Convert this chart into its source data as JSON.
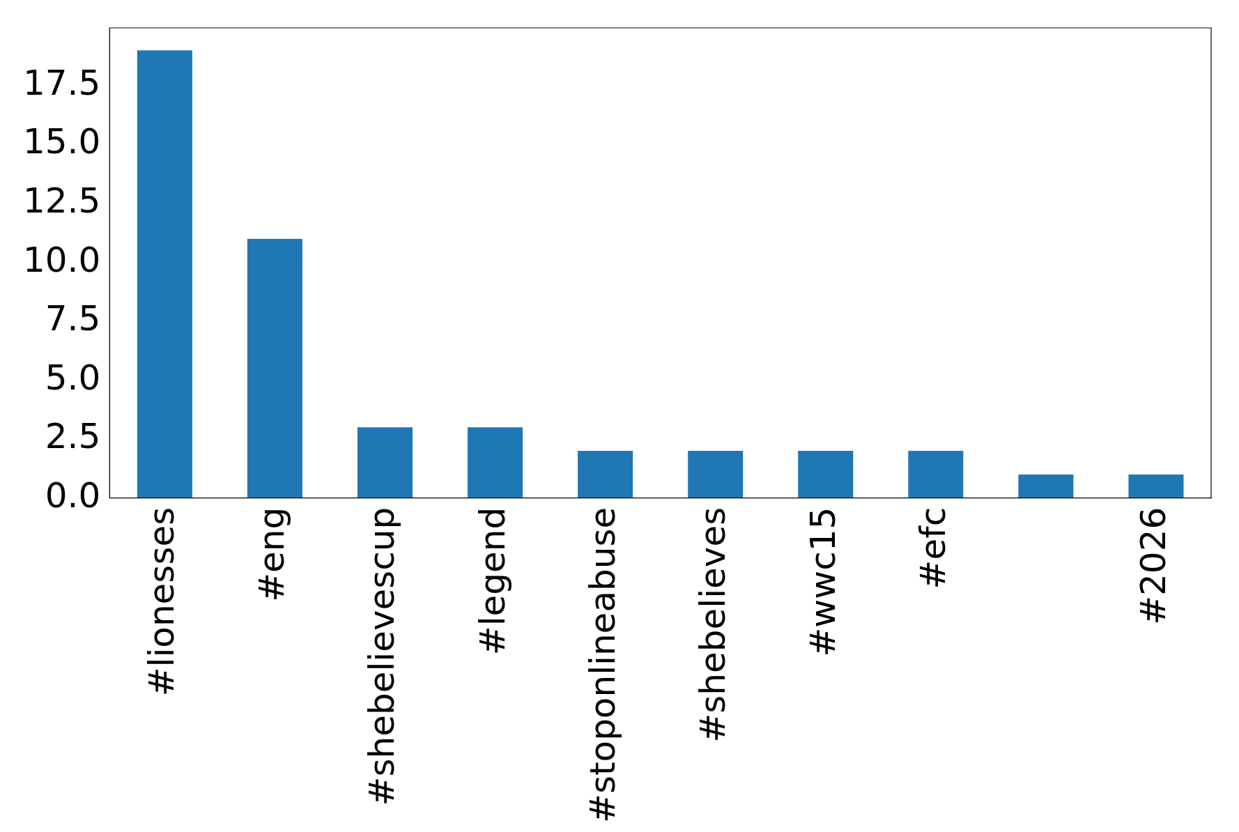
{
  "chart_data": {
    "type": "bar",
    "categories": [
      "#lionesses",
      "#eng",
      "#shebelievescup",
      "#legend",
      "#stoponlineabuse",
      "#shebelieves",
      "#wwc15",
      "#efc",
      null,
      "#2026"
    ],
    "values": [
      19,
      11,
      3,
      3,
      2,
      2,
      2,
      2,
      1,
      1
    ],
    "color": "#1f77b4",
    "ylim": [
      0,
      19.95
    ],
    "yticks": [
      {
        "value": 0,
        "label": "0.0"
      },
      2.5,
      {
        "value": 5,
        "label": "5.0"
      },
      7.5,
      {
        "value": 10,
        "label": "10.0"
      },
      12.5,
      {
        "value": 15,
        "label": "15.0"
      },
      17.5
    ],
    "grid": false,
    "legend": false
  }
}
